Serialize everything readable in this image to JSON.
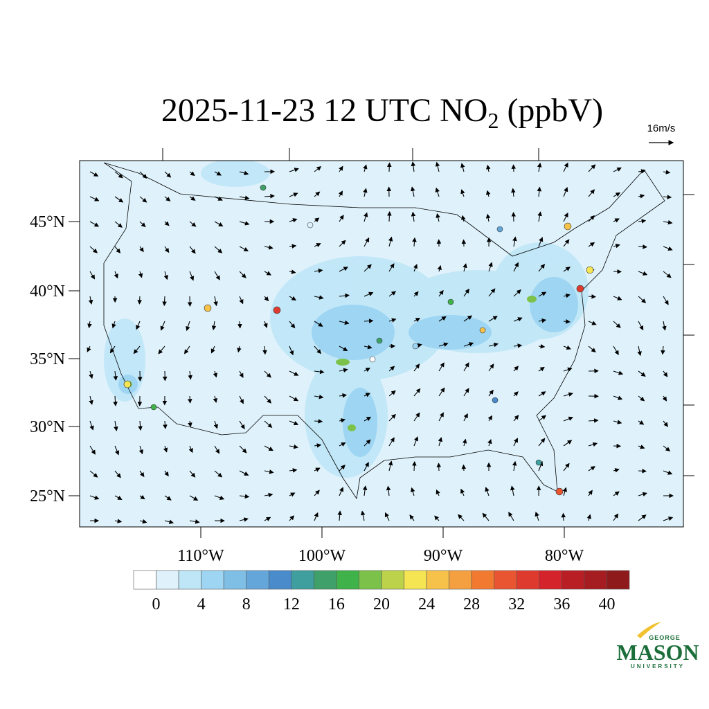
{
  "title": {
    "main": "2025-11-23 12 UTC NO",
    "sub": "2",
    "tail": " (ppbV)"
  },
  "wind_scale": "16m/s",
  "lat_labels": [
    "45°N",
    "40°N",
    "35°N",
    "30°N",
    "25°N"
  ],
  "lon_labels": [
    "110°W",
    "100°W",
    "90°W",
    "80°W"
  ],
  "colorbar": {
    "colors": [
      "#ffffff",
      "#dff2fb",
      "#bfe6f7",
      "#9dd5f3",
      "#7fbfe6",
      "#64a6da",
      "#4a8bcb",
      "#3f9e9e",
      "#3fa06a",
      "#3fb24a",
      "#7cc24a",
      "#bcd24a",
      "#f5e552",
      "#f6c24a",
      "#f5a040",
      "#f27a30",
      "#e85530",
      "#de3a2e",
      "#d4232a",
      "#b81e24",
      "#a51c21",
      "#8e1a1c"
    ],
    "labels": [
      0,
      4,
      8,
      12,
      16,
      20,
      24,
      28,
      32,
      36,
      40
    ]
  },
  "logo": {
    "top": "GEORGE",
    "main": "MASON",
    "bottom": "UNIVERSITY"
  }
}
